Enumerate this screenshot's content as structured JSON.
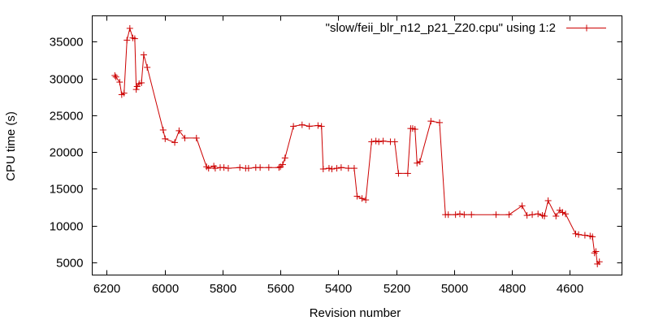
{
  "chart_data": {
    "type": "line",
    "title": "",
    "xlabel": "Revision number",
    "ylabel": "CPU time (s)",
    "xlim": [
      6250,
      4420
    ],
    "ylim": [
      3300,
      38500
    ],
    "x_reversed": true,
    "grid": false,
    "legend_position": "top-right",
    "xticks": [
      6200,
      6000,
      5800,
      5600,
      5400,
      5200,
      5000,
      4800,
      4600
    ],
    "xtick_labels": [
      "6200",
      "6000",
      "5800",
      "5600",
      "5400",
      "5200",
      "5000",
      "4800",
      "4600"
    ],
    "yticks": [
      5000,
      10000,
      15000,
      20000,
      25000,
      30000,
      35000
    ],
    "ytick_labels": [
      "5000",
      "10000",
      "15000",
      "20000",
      "25000",
      "30000",
      "35000"
    ],
    "series": [
      {
        "name": "\"slow/feii_blr_n12_p21_Z20.cpu\" using 1:2",
        "color": "#cc0000",
        "marker": "plus",
        "points": [
          [
            6172,
            30400
          ],
          [
            6168,
            30200
          ],
          [
            6155,
            29500
          ],
          [
            6148,
            27800
          ],
          [
            6140,
            28000
          ],
          [
            6130,
            35200
          ],
          [
            6120,
            36800
          ],
          [
            6110,
            35500
          ],
          [
            6103,
            35400
          ],
          [
            6098,
            28500
          ],
          [
            6095,
            28900
          ],
          [
            6088,
            29300
          ],
          [
            6080,
            29400
          ],
          [
            6072,
            33200
          ],
          [
            6060,
            31500
          ],
          [
            6005,
            23000
          ],
          [
            5998,
            21800
          ],
          [
            5965,
            21300
          ],
          [
            5950,
            22900
          ],
          [
            5930,
            21900
          ],
          [
            5890,
            21900
          ],
          [
            5855,
            18000
          ],
          [
            5848,
            17800
          ],
          [
            5830,
            18100
          ],
          [
            5825,
            17800
          ],
          [
            5808,
            17900
          ],
          [
            5795,
            17900
          ],
          [
            5780,
            17800
          ],
          [
            5740,
            17900
          ],
          [
            5720,
            17800
          ],
          [
            5710,
            17800
          ],
          [
            5685,
            17900
          ],
          [
            5670,
            17900
          ],
          [
            5640,
            17900
          ],
          [
            5605,
            17900
          ],
          [
            5600,
            18000
          ],
          [
            5592,
            18300
          ],
          [
            5584,
            19200
          ],
          [
            5555,
            23500
          ],
          [
            5525,
            23700
          ],
          [
            5500,
            23500
          ],
          [
            5470,
            23600
          ],
          [
            5458,
            23500
          ],
          [
            5452,
            17700
          ],
          [
            5432,
            17800
          ],
          [
            5422,
            17700
          ],
          [
            5405,
            17800
          ],
          [
            5390,
            17900
          ],
          [
            5365,
            17800
          ],
          [
            5345,
            17800
          ],
          [
            5335,
            14000
          ],
          [
            5318,
            13700
          ],
          [
            5305,
            13500
          ],
          [
            5285,
            21400
          ],
          [
            5270,
            21500
          ],
          [
            5260,
            21400
          ],
          [
            5245,
            21500
          ],
          [
            5220,
            21400
          ],
          [
            5205,
            21400
          ],
          [
            5192,
            17100
          ],
          [
            5160,
            17100
          ],
          [
            5150,
            23200
          ],
          [
            5143,
            23200
          ],
          [
            5135,
            23100
          ],
          [
            5128,
            18500
          ],
          [
            5118,
            18700
          ],
          [
            5080,
            24200
          ],
          [
            5050,
            24000
          ],
          [
            5030,
            11500
          ],
          [
            5020,
            11500
          ],
          [
            4995,
            11500
          ],
          [
            4980,
            11600
          ],
          [
            4965,
            11500
          ],
          [
            4940,
            11500
          ],
          [
            4855,
            11500
          ],
          [
            4810,
            11500
          ],
          [
            4765,
            12700
          ],
          [
            4748,
            11400
          ],
          [
            4730,
            11500
          ],
          [
            4710,
            11600
          ],
          [
            4695,
            11400
          ],
          [
            4688,
            11300
          ],
          [
            4675,
            13400
          ],
          [
            4648,
            11300
          ],
          [
            4635,
            12100
          ],
          [
            4625,
            11800
          ],
          [
            4615,
            11600
          ],
          [
            4580,
            8900
          ],
          [
            4570,
            8800
          ],
          [
            4548,
            8700
          ],
          [
            4530,
            8600
          ],
          [
            4522,
            8500
          ],
          [
            4515,
            6300
          ],
          [
            4510,
            6500
          ],
          [
            4505,
            4800
          ],
          [
            4498,
            5100
          ]
        ]
      }
    ]
  }
}
